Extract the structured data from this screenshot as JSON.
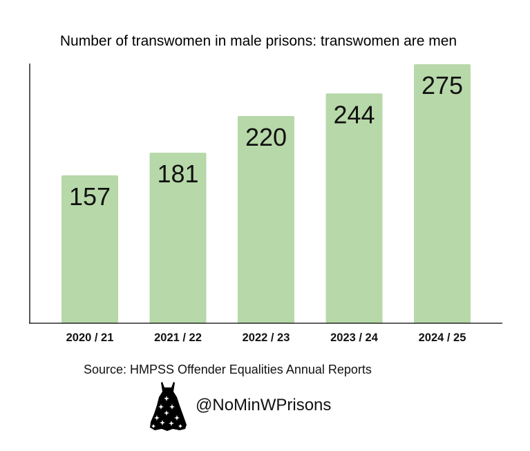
{
  "chart_data": {
    "type": "bar",
    "title": "Number of transwomen in male prisons: transwomen are men",
    "categories": [
      "2020 / 21",
      "2021 / 22",
      "2022 / 23",
      "2023 / 24",
      "2024 / 25"
    ],
    "values": [
      157,
      181,
      220,
      244,
      275
    ],
    "ylim": [
      0,
      275
    ],
    "xlabel": "",
    "ylabel": "",
    "grid": false,
    "legend": "none",
    "bar_color": "#b7d8a8"
  },
  "footer": {
    "source": "Source: HMPSS Offender Equalities Annual Reports",
    "handle": "@NoMinWPrisons",
    "icon": "dress-icon"
  }
}
